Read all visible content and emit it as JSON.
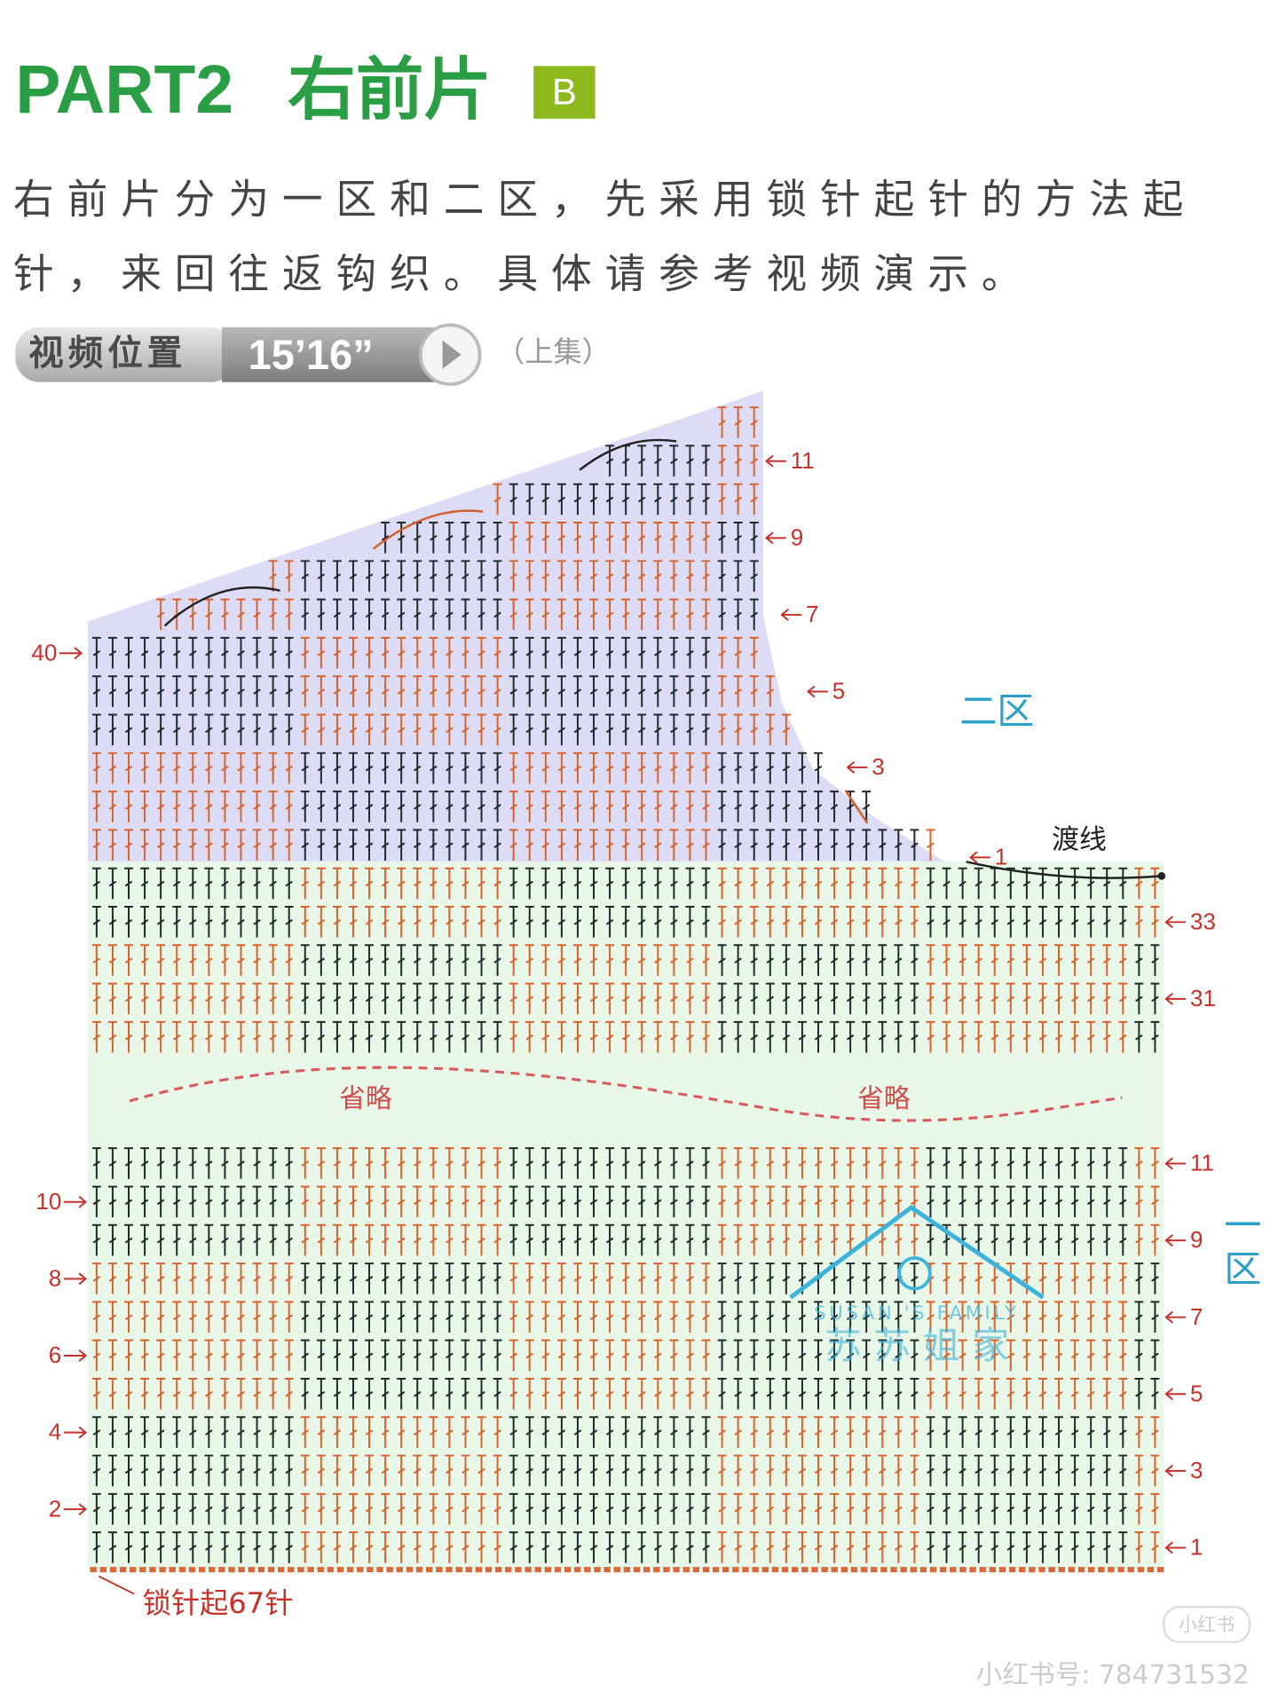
{
  "header": {
    "part": "PART2",
    "title": "右前片",
    "badge": "B"
  },
  "description": [
    "右前片分为一区和二区，先采用锁针起针的方法起",
    "针，来回往返钩织。具体请参考视频演示。"
  ],
  "video": {
    "label": "视频位置",
    "time": "15’16”",
    "note": "（上集）"
  },
  "diagram": {
    "zone2": "二区",
    "zone1": "一区",
    "crossover": "渡线",
    "omitted": [
      "省略",
      "省略"
    ],
    "foundation": "锁针起67针",
    "zone2_right_rows": [
      11,
      9,
      7,
      5,
      3,
      1
    ],
    "zone2_left_rows": [
      40
    ],
    "zone1_right_rows": [
      33,
      31,
      11,
      9,
      7,
      5,
      3,
      1
    ],
    "zone1_left_rows": [
      10,
      8,
      6,
      4,
      2
    ],
    "logo": {
      "brand": "SUSAN 'S  FAMILY",
      "name": "苏 苏 姐 家"
    }
  },
  "watermark": {
    "app": "小红书",
    "id": "小红书号: 784731532"
  }
}
